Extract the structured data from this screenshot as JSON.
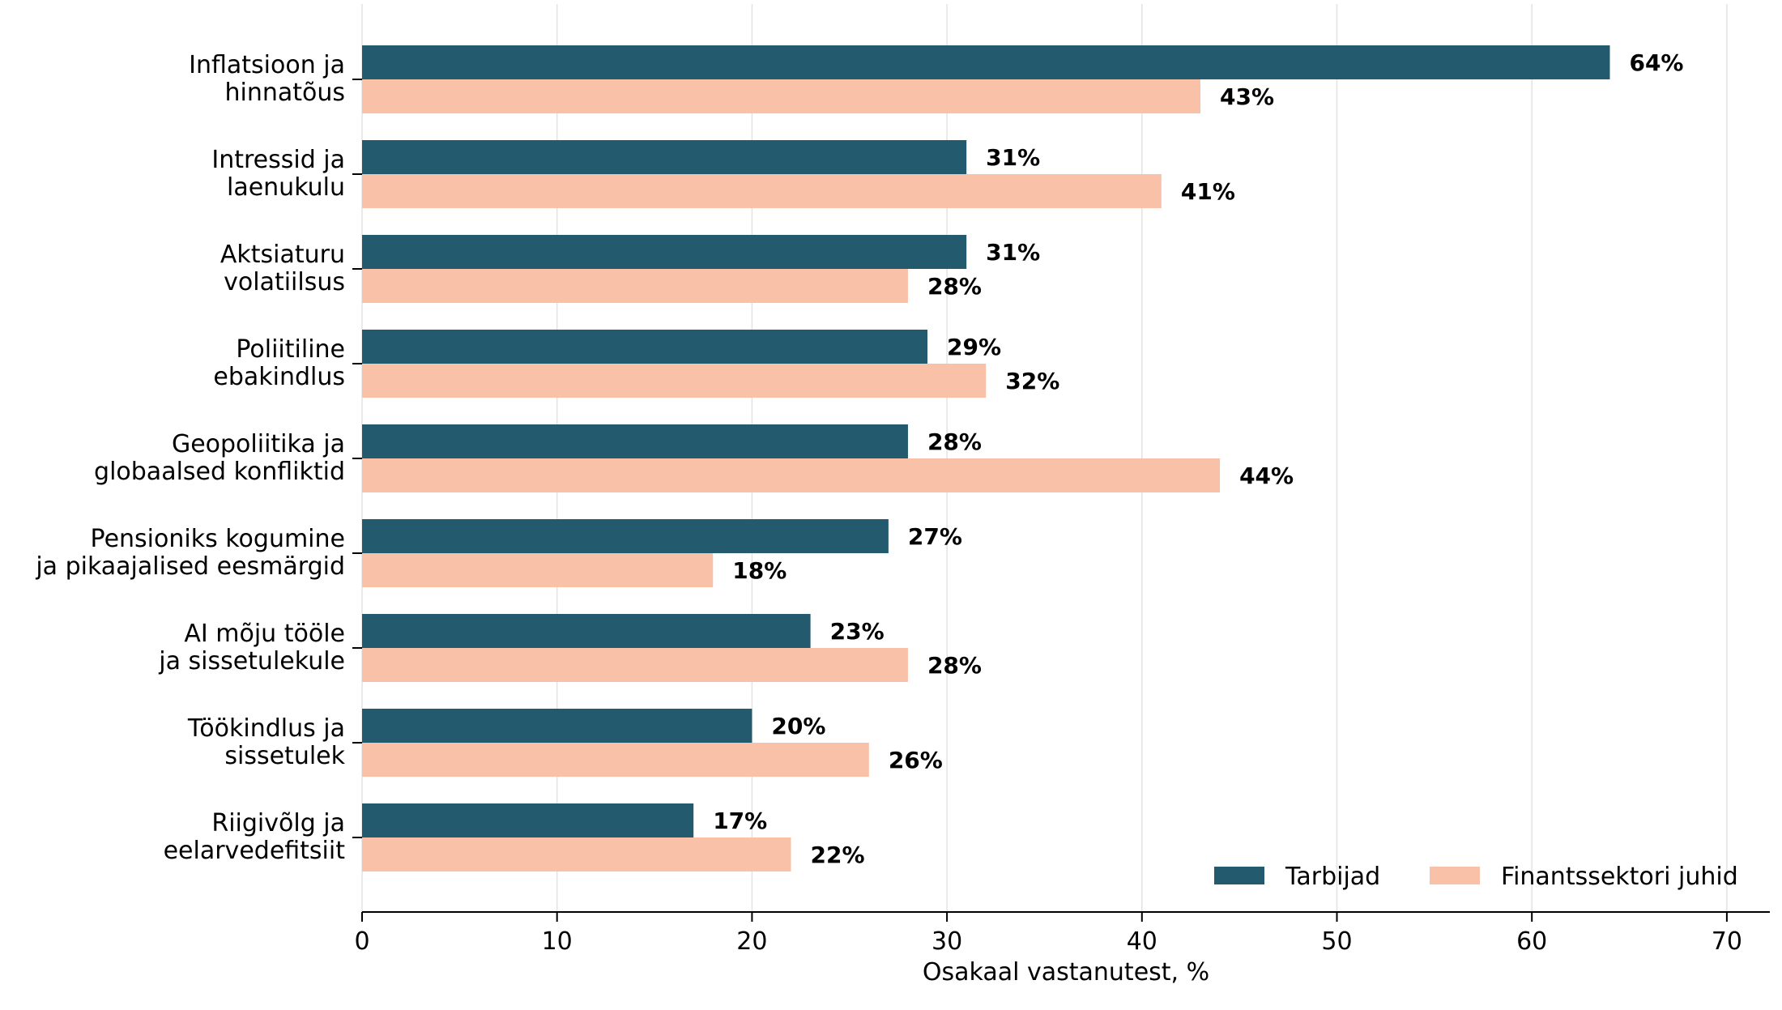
{
  "chart_data": {
    "type": "bar",
    "orientation": "horizontal",
    "categories": [
      [
        "Inflatsioon ja",
        "hinnatõus"
      ],
      [
        "Intressid ja",
        "laenukulu"
      ],
      [
        "Aktsiaturu",
        "volatiilsus"
      ],
      [
        "Poliitiline",
        "ebakindlus"
      ],
      [
        "Geopoliitika ja",
        "globaalsed konfliktid"
      ],
      [
        "Pensioniks kogumine",
        "ja pikaajalised eesmärgid"
      ],
      [
        "AI mõju tööle",
        "ja sissetulekule"
      ],
      [
        "Töökindlus ja",
        "sissetulek"
      ],
      [
        "Riigivõlg ja",
        "eelarvedefitsiit"
      ]
    ],
    "series": [
      {
        "name": "Tarbijad",
        "color": "#245a6e",
        "values": [
          64,
          31,
          31,
          29,
          28,
          27,
          23,
          20,
          17
        ]
      },
      {
        "name": "Finantssektori juhid",
        "color": "#f9c2a8",
        "values": [
          43,
          41,
          28,
          32,
          44,
          18,
          28,
          26,
          22
        ]
      }
    ],
    "value_suffix": "%",
    "xlabel": "Osakaal vastanutest, %",
    "xlim": [
      0,
      72
    ],
    "xticks": [
      0,
      10,
      20,
      30,
      40,
      50,
      60,
      70
    ],
    "grid": "vertical",
    "legend_position": "bottom-right"
  }
}
